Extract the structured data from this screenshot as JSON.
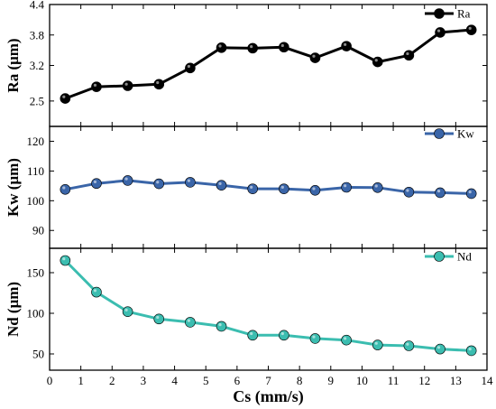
{
  "chart_data": {
    "type": "line",
    "xlabel": "Cs (mm/s)",
    "xlim": [
      0,
      14
    ],
    "x_ticks": [
      "0",
      "1",
      "2",
      "3",
      "4",
      "5",
      "6",
      "7",
      "8",
      "9",
      "10",
      "11",
      "12",
      "13",
      "14"
    ],
    "x": [
      0.5,
      1.5,
      2.5,
      3.5,
      4.5,
      5.5,
      6.5,
      7.5,
      8.5,
      9.5,
      10.5,
      11.5,
      12.5,
      13.5
    ],
    "panels": [
      {
        "ylabel": "Ra (μm)",
        "ylim": [
          2.0,
          4.4
        ],
        "y_ticks": [
          "2.5",
          "3.2",
          "3.8",
          "4.4"
        ],
        "y_tick_values": [
          2.5,
          3.2,
          3.8,
          4.4
        ],
        "series": [
          {
            "name": "Ra",
            "color": "#000000",
            "values": [
              2.55,
              2.78,
              2.8,
              2.83,
              3.15,
              3.55,
              3.54,
              3.56,
              3.35,
              3.58,
              3.27,
              3.4,
              3.85,
              3.9
            ]
          }
        ]
      },
      {
        "ylabel": "Kw (μm)",
        "ylim": [
          84,
          125
        ],
        "y_ticks": [
          "90",
          "100",
          "110",
          "120"
        ],
        "y_tick_values": [
          90,
          100,
          110,
          120
        ],
        "series": [
          {
            "name": "Kw",
            "color": "#3a65a8",
            "values": [
              103.8,
              105.8,
              106.8,
              105.7,
              106.2,
              105.2,
              104.0,
              104.0,
              103.5,
              104.5,
              104.4,
              102.9,
              102.7,
              102.4
            ]
          }
        ]
      },
      {
        "ylabel": "Nd (μm)",
        "ylim": [
          30,
          180
        ],
        "y_ticks": [
          "50",
          "100",
          "150"
        ],
        "y_tick_values": [
          50,
          100,
          150
        ],
        "series": [
          {
            "name": "Nd",
            "color": "#3bbdb0",
            "values": [
              165,
              126,
              102,
              93,
              89,
              84,
              73,
              73,
              69,
              67,
              61,
              60,
              56,
              54
            ]
          }
        ]
      }
    ],
    "grid": false,
    "legend_position": "top-right"
  }
}
